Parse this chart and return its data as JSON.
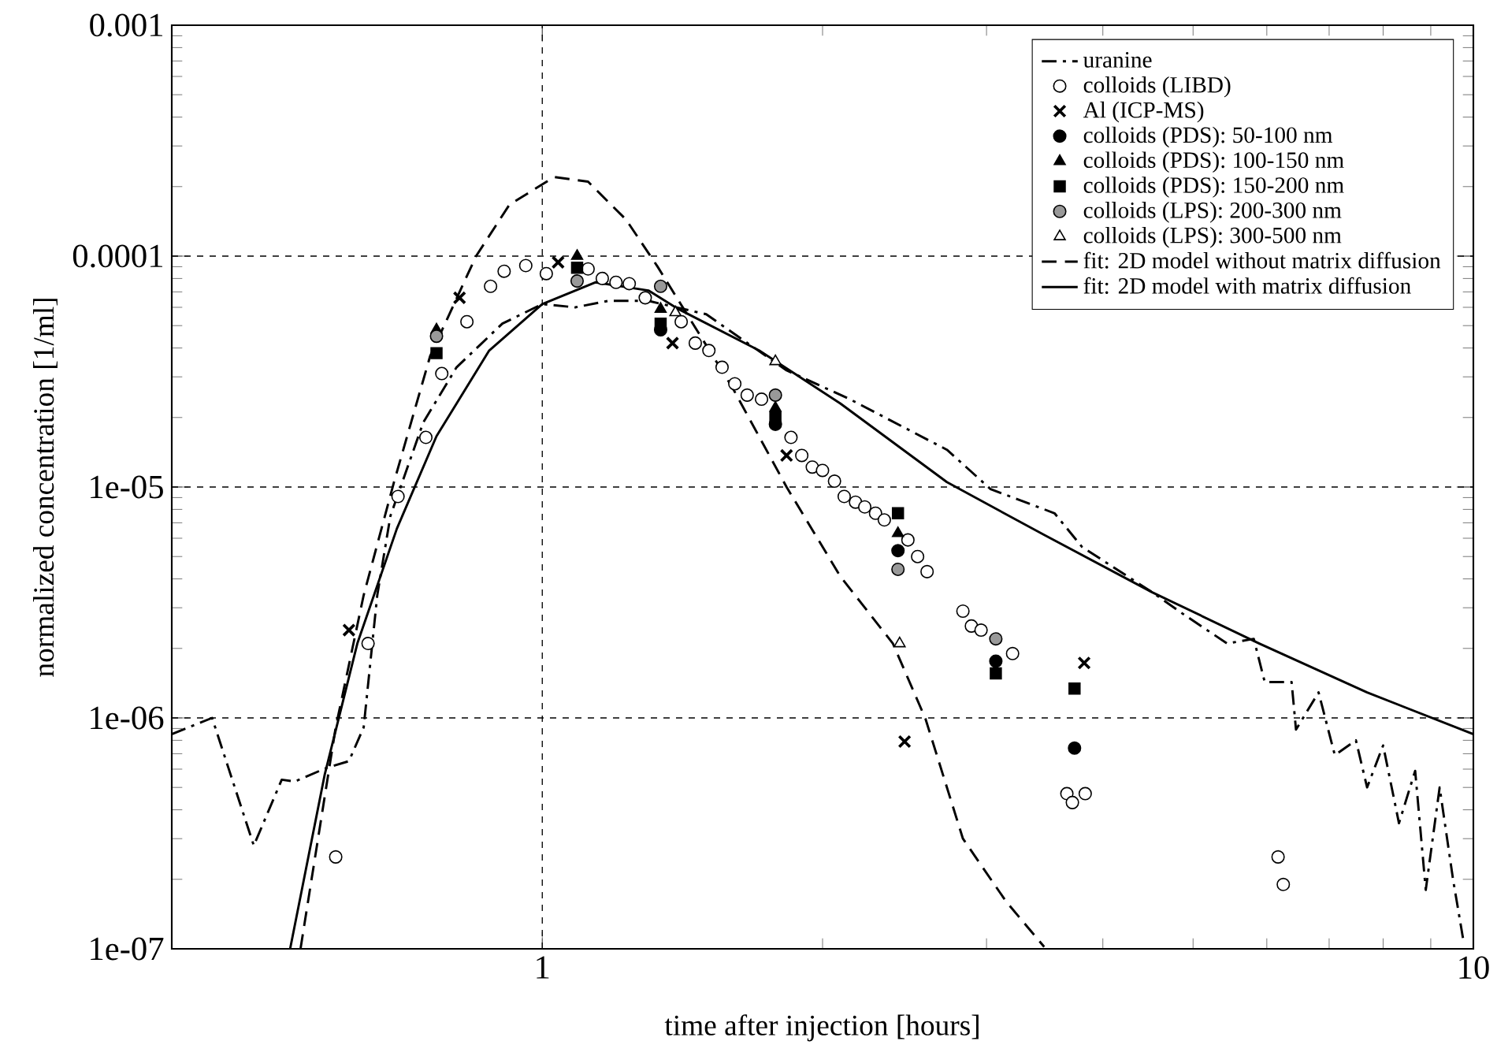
{
  "chart_data": {
    "type": "scatter",
    "xlabel": "time after injection [hours]",
    "ylabel": "normalized concentration [1/ml]",
    "log": "xy",
    "grid": true,
    "legend": "top right",
    "xlim": [
      0.4,
      10
    ],
    "ylim": [
      1e-07,
      0.001
    ],
    "xticks": [
      1,
      10
    ],
    "yticks": [
      {
        "value": 1e-07,
        "label": "1e-07"
      },
      {
        "value": 1e-06,
        "label": "1e-06"
      },
      {
        "value": 1e-05,
        "label": "1e-05"
      },
      {
        "value": 0.0001,
        "label": "0.0001"
      },
      {
        "value": 0.001,
        "label": "0.001"
      }
    ],
    "series": [
      {
        "name": "uranine",
        "type": "line",
        "line_style": "dashdot",
        "color": "#000000",
        "x": [
          0.4,
          0.442,
          0.46,
          0.49,
          0.525,
          0.542,
          0.588,
          0.62,
          0.643,
          0.665,
          0.687,
          0.745,
          0.809,
          0.906,
          1.0,
          1.085,
          1.177,
          1.3,
          1.5,
          1.83,
          2.14,
          2.72,
          3.03,
          3.55,
          3.8,
          4.52,
          4.89,
          5.44,
          5.81,
          5.97,
          6.38,
          6.45,
          6.82,
          7.1,
          7.48,
          7.69,
          8.0,
          8.32,
          8.66,
          8.89,
          9.2,
          9.51,
          9.77
        ],
        "values": [
          8.5e-07,
          1e-06,
          6.1e-07,
          2.8e-07,
          5.4e-07,
          5.3e-07,
          6.1e-07,
          6.5e-07,
          9.1e-07,
          3.4e-06,
          7.5e-06,
          1.9e-05,
          3.3e-05,
          5.1e-05,
          6.2e-05,
          6e-05,
          6.4e-05,
          6.4e-05,
          5.6e-05,
          3.2e-05,
          2.4e-05,
          1.45e-05,
          9.8e-06,
          7.7e-06,
          5.5e-06,
          3.5e-06,
          2.8e-06,
          2.1e-06,
          2.2e-06,
          1.43e-06,
          1.43e-06,
          8.9e-07,
          1.29e-06,
          6.9e-07,
          8e-07,
          5e-07,
          7.6e-07,
          3.5e-07,
          5.9e-07,
          1.8e-07,
          5e-07,
          2e-07,
          1.05e-07
        ]
      },
      {
        "name": "colloids (LIBD)",
        "marker": "circle",
        "color": "#ffffff",
        "x": [
          0.6,
          0.65,
          0.7,
          0.75,
          0.78,
          0.83,
          0.88,
          0.91,
          0.96,
          1.01,
          1.12,
          1.16,
          1.2,
          1.24,
          1.29,
          1.41,
          1.46,
          1.51,
          1.56,
          1.61,
          1.66,
          1.72,
          1.85,
          1.9,
          1.95,
          2.0,
          2.06,
          2.11,
          2.17,
          2.22,
          2.28,
          2.33,
          2.47,
          2.53,
          2.59,
          2.83,
          2.89,
          2.96,
          3.2,
          3.66,
          3.71,
          3.83,
          6.17,
          6.25
        ],
        "values": [
          2.5e-07,
          2.1e-06,
          9.1e-06,
          1.64e-05,
          3.1e-05,
          5.2e-05,
          7.4e-05,
          8.6e-05,
          9.1e-05,
          8.4e-05,
          8.8e-05,
          8e-05,
          7.7e-05,
          7.6e-05,
          6.6e-05,
          5.2e-05,
          4.2e-05,
          3.9e-05,
          3.3e-05,
          2.8e-05,
          2.5e-05,
          2.4e-05,
          1.64e-05,
          1.37e-05,
          1.22e-05,
          1.18e-05,
          1.06e-05,
          9.1e-06,
          8.6e-06,
          8.2e-06,
          7.7e-06,
          7.2e-06,
          5.9e-06,
          5e-06,
          4.3e-06,
          2.9e-06,
          2.5e-06,
          2.4e-06,
          1.9e-06,
          4.7e-07,
          4.3e-07,
          4.7e-07,
          2.5e-07,
          1.9e-07
        ]
      },
      {
        "name": "Al (ICP-MS)",
        "marker": "cross",
        "color": "#000000",
        "x": [
          0.62,
          0.815,
          1.04,
          1.38,
          1.83,
          2.45,
          3.82
        ],
        "values": [
          2.4e-06,
          6.6e-05,
          9.4e-05,
          4.2e-05,
          1.37e-05,
          7.9e-07,
          1.73e-06
        ]
      },
      {
        "name": "colloids (PDS): 50-100 nm",
        "marker": "circle",
        "color": "#000000",
        "x": [
          1.34,
          1.78,
          2.41,
          3.07,
          3.73
        ],
        "values": [
          4.8e-05,
          1.87e-05,
          5.3e-06,
          1.76e-06,
          7.4e-07
        ]
      },
      {
        "name": "colloids (PDS): 100-150 nm",
        "marker": "triangle",
        "color": "#000000",
        "x": [
          0.77,
          1.09,
          1.34,
          1.78,
          2.41
        ],
        "values": [
          4.8e-05,
          0.0001,
          5.9e-05,
          2.2e-05,
          6.3e-06
        ]
      },
      {
        "name": "colloids (PDS): 150-200 nm",
        "marker": "square",
        "color": "#000000",
        "x": [
          0.77,
          1.09,
          1.34,
          1.78,
          2.41,
          3.07,
          3.73
        ],
        "values": [
          3.8e-05,
          8.9e-05,
          5.1e-05,
          2e-05,
          7.7e-06,
          1.56e-06,
          1.34e-06
        ]
      },
      {
        "name": "colloids (LPS): 200-300 nm",
        "marker": "circle",
        "color": "#999999",
        "x": [
          0.77,
          1.09,
          1.34,
          1.78,
          2.41,
          3.07
        ],
        "values": [
          4.5e-05,
          7.8e-05,
          7.4e-05,
          2.5e-05,
          4.4e-06,
          2.2e-06
        ]
      },
      {
        "name": "colloids (LPS): 300-500 nm",
        "marker": "triangle",
        "color": "#ffffff",
        "x": [
          1.39,
          1.78,
          2.42
        ],
        "values": [
          5.7e-05,
          3.5e-05,
          2.1e-06
        ]
      },
      {
        "name": "fit: 2D model without matrix diffusion",
        "type": "line",
        "line_style": "dashed",
        "color": "#000000",
        "x": [
          0.55,
          0.6,
          0.643,
          0.693,
          0.758,
          0.849,
          0.922,
          1.03,
          1.12,
          1.23,
          1.33,
          1.6,
          1.83,
          2.09,
          2.38,
          2.58,
          2.83,
          3.15,
          3.46
        ],
        "values": [
          1e-07,
          9.1e-07,
          3.4e-06,
          1.05e-05,
          3.7e-05,
          0.0001,
          0.000167,
          0.00022,
          0.00021,
          0.000144,
          9e-05,
          2.7e-05,
          1e-05,
          4.1e-06,
          2.1e-06,
          9.9e-07,
          3e-07,
          1.6e-07,
          1.02e-07
        ]
      },
      {
        "name": "fit: 2D model with matrix diffusion",
        "type": "line",
        "line_style": "solid",
        "color": "#000000",
        "x": [
          0.536,
          0.584,
          0.633,
          0.698,
          0.77,
          0.877,
          1.0,
          1.14,
          1.3,
          1.4,
          1.71,
          2.09,
          2.72,
          3.46,
          4.52,
          5.89,
          7.69,
          10.0
        ],
        "values": [
          1e-07,
          5.7e-07,
          2.1e-06,
          6.6e-06,
          1.66e-05,
          3.9e-05,
          6.2e-05,
          7.7e-05,
          7.1e-05,
          5.9e-05,
          3.9e-05,
          2.3e-05,
          1.05e-05,
          6.2e-06,
          3.5e-06,
          2.1e-06,
          1.29e-06,
          8.5e-07
        ]
      }
    ]
  }
}
